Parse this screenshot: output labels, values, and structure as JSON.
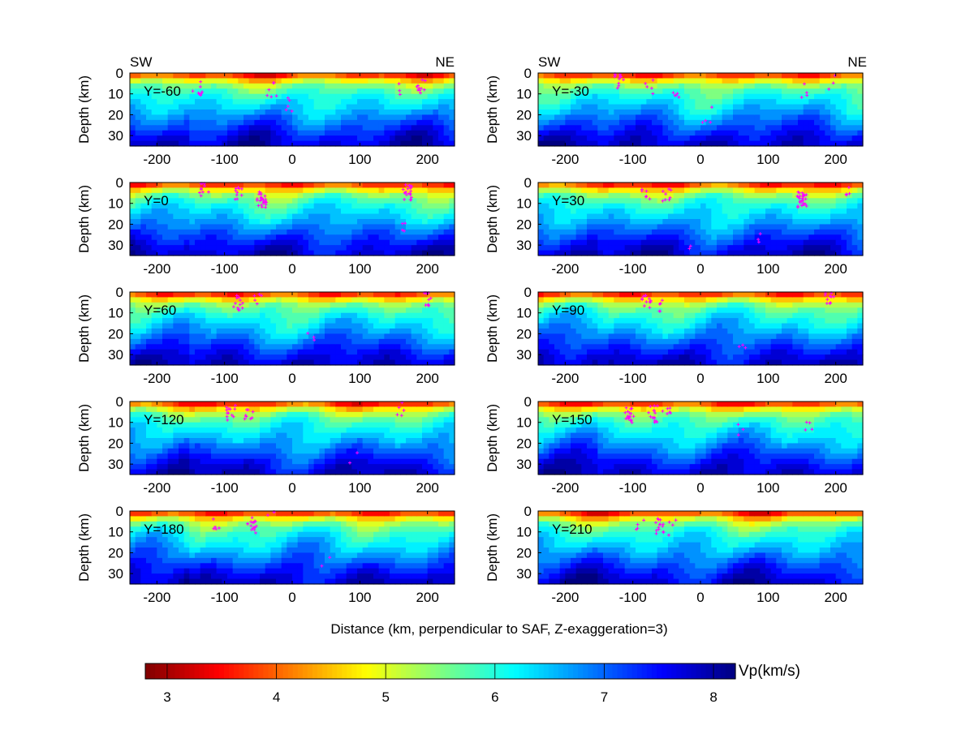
{
  "chart_data": {
    "type": "heatmap",
    "title": "",
    "xlabel": "Distance (km, perpendicular to SAF, Z-exaggeration=3)",
    "ylabel": "Depth (km)",
    "xlim": [
      -240,
      240
    ],
    "ylim": [
      0,
      35
    ],
    "y_reversed": true,
    "xticks": [
      -200,
      -100,
      0,
      100,
      200
    ],
    "yticks": [
      0,
      10,
      20,
      30
    ],
    "direction_labels": {
      "left": "SW",
      "right": "NE"
    },
    "colorbar": {
      "label": "Vp(km/s)",
      "colormap": "jet-reversed",
      "range": [
        2.8,
        8.2
      ],
      "ticks": [
        3,
        4,
        5,
        6,
        7,
        8
      ],
      "orientation": "horizontal",
      "placement": "bottom"
    },
    "earthquake_color": "#ff00ff",
    "contour_color": "#ffffff",
    "panels": [
      {
        "label": "Y=-60",
        "seismicity_clusters": [
          [
            -140,
            7,
            8
          ],
          [
            -30,
            8,
            6
          ],
          [
            -5,
            15,
            5
          ],
          [
            190,
            6,
            10
          ],
          [
            155,
            8,
            3
          ]
        ]
      },
      {
        "label": "Y=-30",
        "seismicity_clusters": [
          [
            -120,
            4,
            12
          ],
          [
            -75,
            6,
            5
          ],
          [
            -35,
            8,
            5
          ],
          [
            10,
            20,
            4
          ],
          [
            155,
            8,
            4
          ],
          [
            195,
            5,
            3
          ]
        ]
      },
      {
        "label": "Y=0",
        "seismicity_clusters": [
          [
            -130,
            3,
            10
          ],
          [
            -80,
            5,
            10
          ],
          [
            -45,
            8,
            25
          ],
          [
            170,
            5,
            20
          ],
          [
            160,
            22,
            4
          ]
        ]
      },
      {
        "label": "Y=30",
        "seismicity_clusters": [
          [
            -80,
            6,
            6
          ],
          [
            -50,
            6,
            8
          ],
          [
            150,
            8,
            30
          ],
          [
            -15,
            28,
            2
          ],
          [
            90,
            28,
            3
          ],
          [
            215,
            2,
            4
          ]
        ]
      },
      {
        "label": "Y=60",
        "seismicity_clusters": [
          [
            -80,
            5,
            12
          ],
          [
            -50,
            5,
            5
          ],
          [
            200,
            3,
            10
          ],
          [
            30,
            20,
            3
          ]
        ]
      },
      {
        "label": "Y=90",
        "seismicity_clusters": [
          [
            -80,
            5,
            12
          ],
          [
            -60,
            6,
            5
          ],
          [
            190,
            2,
            10
          ],
          [
            60,
            25,
            3
          ]
        ]
      },
      {
        "label": "Y=120",
        "seismicity_clusters": [
          [
            -90,
            5,
            12
          ],
          [
            -65,
            5,
            8
          ],
          [
            160,
            3,
            5
          ],
          [
            90,
            28,
            2
          ]
        ]
      },
      {
        "label": "Y=150",
        "seismicity_clusters": [
          [
            -105,
            7,
            18
          ],
          [
            -70,
            6,
            16
          ],
          [
            -50,
            6,
            6
          ],
          [
            60,
            15,
            3
          ],
          [
            160,
            10,
            4
          ]
        ]
      },
      {
        "label": "Y=180",
        "seismicity_clusters": [
          [
            -110,
            6,
            5
          ],
          [
            -60,
            7,
            16
          ],
          [
            -30,
            3,
            3
          ],
          [
            50,
            25,
            2
          ]
        ]
      },
      {
        "label": "Y=210",
        "seismicity_clusters": [
          [
            -60,
            7,
            14
          ],
          [
            -90,
            5,
            4
          ],
          [
            -40,
            8,
            4
          ]
        ]
      }
    ]
  }
}
